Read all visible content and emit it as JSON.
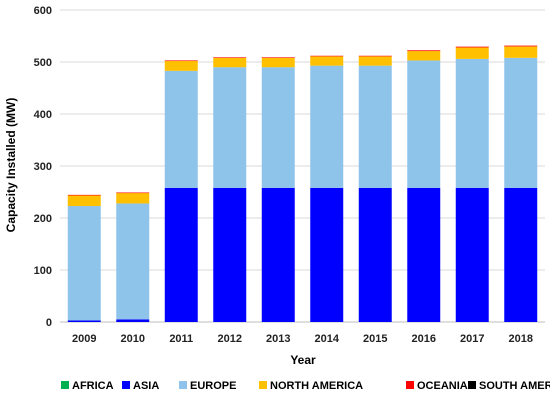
{
  "chart_data": {
    "type": "bar",
    "stacked": true,
    "categories": [
      "2009",
      "2010",
      "2011",
      "2012",
      "2013",
      "2014",
      "2015",
      "2016",
      "2017",
      "2018"
    ],
    "series": [
      {
        "name": "AFRICA",
        "color": "#00b050",
        "values": [
          0,
          0,
          0,
          0,
          0,
          0,
          0,
          0,
          0,
          0
        ]
      },
      {
        "name": "ASIA",
        "color": "#0000ff",
        "values": [
          3,
          5,
          258,
          258,
          258,
          258,
          258,
          258,
          258,
          258
        ]
      },
      {
        "name": "EUROPE",
        "color": "#8ec3ea",
        "values": [
          220,
          223,
          225,
          232,
          232,
          235,
          235,
          245,
          248,
          250
        ]
      },
      {
        "name": "NORTH AMERICA",
        "color": "#ffc000",
        "values": [
          21,
          20,
          19,
          18,
          18,
          18,
          18,
          18,
          22,
          22
        ]
      },
      {
        "name": "OCEANIA",
        "color": "#ff0000",
        "values": [
          0.5,
          1,
          1,
          1,
          1,
          1,
          1,
          1.5,
          1.5,
          1.5
        ]
      },
      {
        "name": "SOUTH AMERICA",
        "color": "#000000",
        "values": [
          0,
          0,
          0,
          0,
          0,
          0,
          0,
          0,
          0,
          0
        ]
      }
    ],
    "title": "",
    "xlabel": "Year",
    "ylabel": "Capacity Installed (MW)",
    "ylim": [
      0,
      600
    ],
    "yticks": [
      "0",
      "100",
      "200",
      "300",
      "400",
      "500",
      "600"
    ],
    "grid": true,
    "legend_position": "bottom"
  }
}
